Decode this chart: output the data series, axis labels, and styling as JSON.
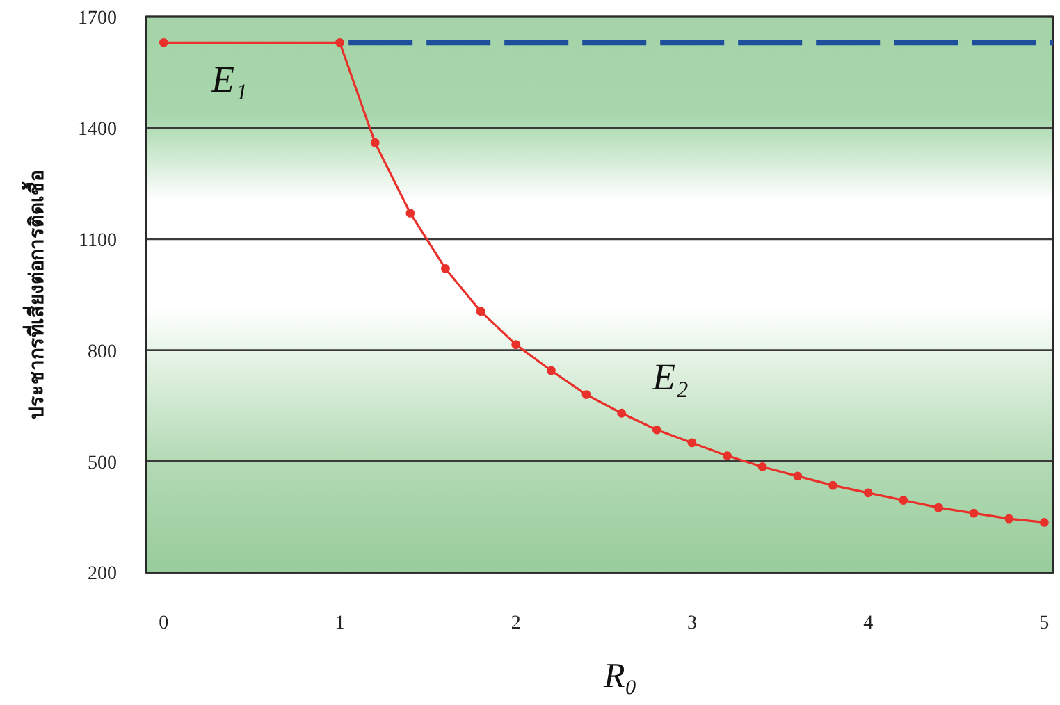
{
  "chart_data": {
    "type": "line",
    "xlabel": "R₀",
    "ylabel": "ประชากรที่เสี่ยงต่อการติดเชื้อ",
    "xlim": [
      -0.1,
      5.05
    ],
    "xticks": [
      0,
      1,
      2,
      3,
      4,
      5
    ],
    "ylim": [
      200,
      1700
    ],
    "yticks": [
      200,
      500,
      800,
      1100,
      1400,
      1700
    ],
    "grid": "y",
    "series": [
      {
        "color": "#e8312a",
        "marker": "circle",
        "line_style": "solid",
        "x": [
          0,
          1,
          1.2,
          1.4,
          1.6,
          1.8,
          2,
          2.2,
          2.4,
          2.6,
          2.8,
          3,
          3.2,
          3.4,
          3.6,
          3.8,
          4,
          4.2,
          4.4,
          4.6,
          4.8,
          5
        ],
        "values": [
          1630,
          1630,
          1360,
          1170,
          1020,
          905,
          815,
          745,
          680,
          630,
          585,
          550,
          515,
          485,
          460,
          435,
          415,
          395,
          375,
          360,
          345,
          335
        ]
      },
      {
        "color": "#1f4e9c",
        "marker": "none",
        "line_style": "dashed",
        "x": [
          1.05,
          5.05
        ],
        "values": [
          1630,
          1630
        ]
      }
    ],
    "annotations": [
      "E₁",
      "E₂"
    ]
  }
}
